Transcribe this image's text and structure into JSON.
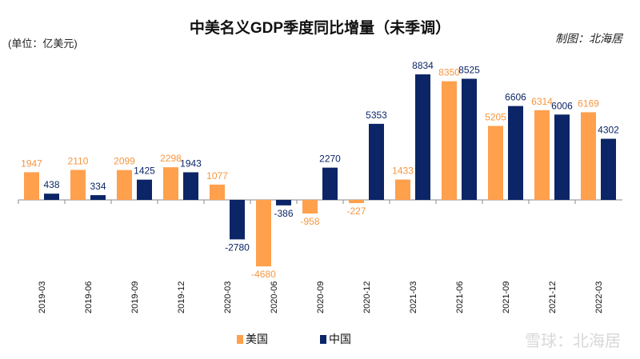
{
  "title": "中美名义GDP季度同比增量（未季调）",
  "unit_label": "(单位：亿美元)",
  "credit": "制图：北海居",
  "watermark": "雪球：北海居",
  "chart_data": {
    "type": "bar",
    "title": "中美名义GDP季度同比增量（未季调）",
    "ylabel": "(单位：亿美元)",
    "categories": [
      "2019-03",
      "2019-06",
      "2019-09",
      "2019-12",
      "2020-03",
      "2020-06",
      "2020-09",
      "2020-12",
      "2021-03",
      "2021-06",
      "2021-09",
      "2021-12",
      "2022-03"
    ],
    "series": [
      {
        "name": "美国",
        "color": "#FFA04D",
        "values": [
          1947,
          2110,
          2099,
          2298,
          1077,
          -4680,
          -958,
          -227,
          1433,
          8350,
          5205,
          6314,
          6169
        ]
      },
      {
        "name": "中国",
        "color": "#0B2566",
        "values": [
          438,
          334,
          1425,
          1943,
          -2780,
          -386,
          2270,
          5353,
          8834,
          8525,
          6606,
          6006,
          4302
        ]
      }
    ],
    "data_labels": true,
    "grid": false,
    "legend": "bottom"
  }
}
